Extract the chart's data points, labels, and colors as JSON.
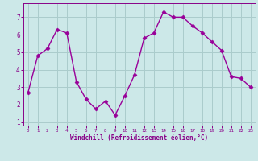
{
  "x": [
    0,
    1,
    2,
    3,
    4,
    5,
    6,
    7,
    8,
    9,
    10,
    11,
    12,
    13,
    14,
    15,
    16,
    17,
    18,
    19,
    20,
    21,
    22,
    23
  ],
  "y": [
    2.7,
    4.8,
    5.2,
    6.3,
    6.1,
    3.3,
    2.3,
    1.75,
    2.2,
    1.4,
    2.5,
    3.7,
    5.8,
    6.1,
    7.3,
    7.0,
    7.0,
    6.5,
    6.1,
    5.6,
    5.1,
    3.6,
    3.5,
    3.0
  ],
  "line_color": "#990099",
  "marker": "D",
  "marker_size": 2.5,
  "bg_color": "#cce8e8",
  "grid_color": "#aacccc",
  "xlabel": "Windchill (Refroidissement éolien,°C)",
  "xlabel_color": "#880088",
  "tick_color": "#880088",
  "xlim": [
    -0.5,
    23.5
  ],
  "ylim": [
    0.8,
    7.8
  ],
  "yticks": [
    1,
    2,
    3,
    4,
    5,
    6,
    7
  ],
  "xticks": [
    0,
    1,
    2,
    3,
    4,
    5,
    6,
    7,
    8,
    9,
    10,
    11,
    12,
    13,
    14,
    15,
    16,
    17,
    18,
    19,
    20,
    21,
    22,
    23
  ],
  "line_width": 1.0
}
